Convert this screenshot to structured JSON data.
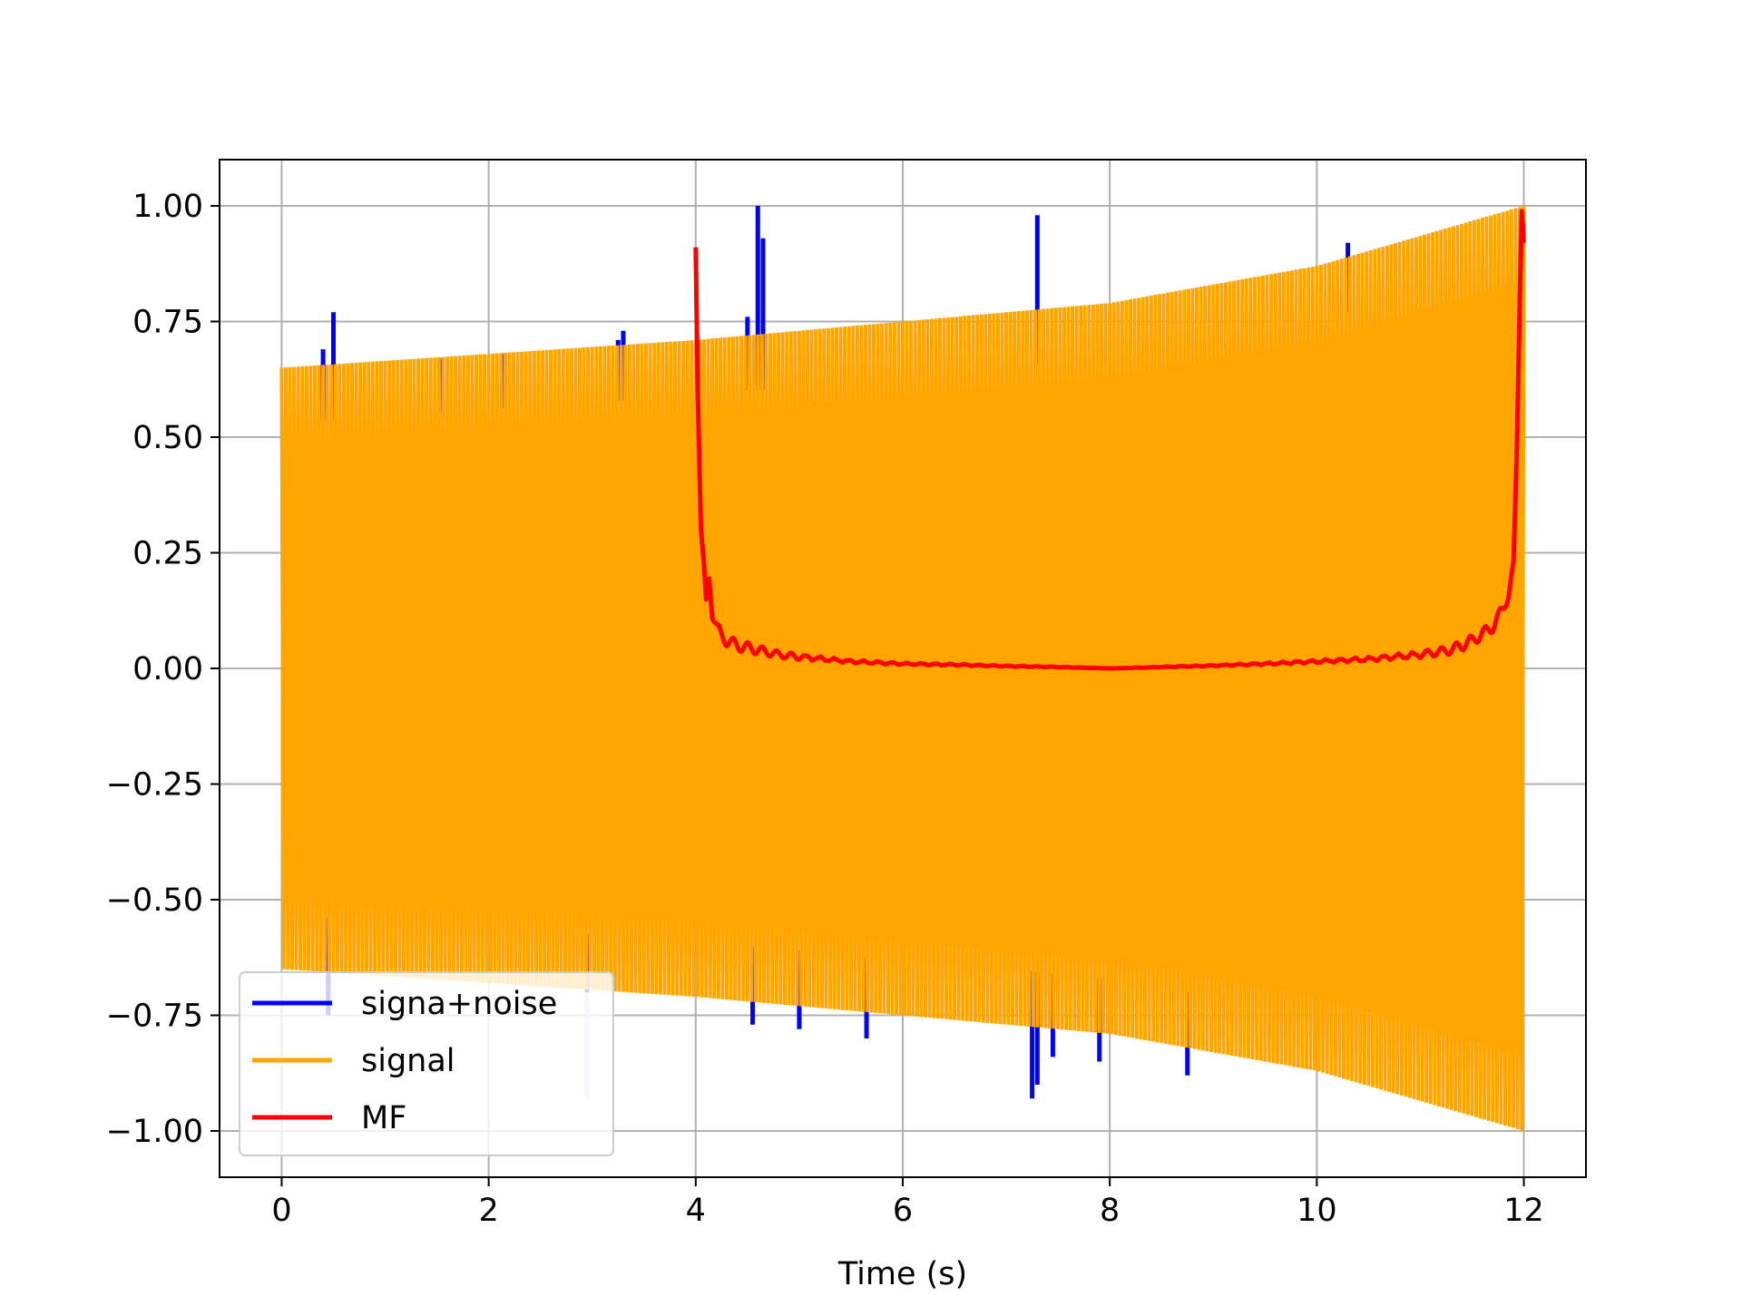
{
  "chart_data": {
    "type": "line",
    "title": "",
    "xlabel": "Time (s)",
    "ylabel": "",
    "xlim": [
      -0.6,
      12.6
    ],
    "ylim": [
      -1.1,
      1.1
    ],
    "xticks": [
      0,
      2,
      4,
      6,
      8,
      10,
      12
    ],
    "xtick_labels": [
      "0",
      "2",
      "4",
      "6",
      "8",
      "10",
      "12"
    ],
    "yticks": [
      1.0,
      0.75,
      0.5,
      0.25,
      0.0,
      -0.25,
      -0.5,
      -0.75,
      -1.0
    ],
    "ytick_labels": [
      "1.00",
      "0.75",
      "0.50",
      "0.25",
      "0.00",
      "−0.25",
      "−0.50",
      "−0.75",
      "−1.00"
    ],
    "grid": true,
    "legend_position": "lower-left",
    "series": [
      {
        "name": "signa+noise",
        "color": "#0000ff",
        "description_points": {
          "noise_spikes": [
            {
              "t": 0.4,
              "y": 0.69
            },
            {
              "t": 0.5,
              "y": 0.77
            },
            {
              "t": 1.55,
              "y": 0.67
            },
            {
              "t": 2.15,
              "y": 0.68
            },
            {
              "t": 3.25,
              "y": 0.71
            },
            {
              "t": 3.3,
              "y": 0.73
            },
            {
              "t": 4.5,
              "y": 0.76
            },
            {
              "t": 4.6,
              "y": 1.0
            },
            {
              "t": 4.65,
              "y": 0.93
            },
            {
              "t": 7.3,
              "y": 0.98
            },
            {
              "t": 10.3,
              "y": 0.92
            },
            {
              "t": 0.45,
              "y": -0.75
            },
            {
              "t": 2.95,
              "y": -0.93
            },
            {
              "t": 4.55,
              "y": -0.77
            },
            {
              "t": 5.0,
              "y": -0.78
            },
            {
              "t": 5.65,
              "y": -0.8
            },
            {
              "t": 7.25,
              "y": -0.93
            },
            {
              "t": 7.3,
              "y": -0.9
            },
            {
              "t": 7.45,
              "y": -0.84
            },
            {
              "t": 7.9,
              "y": -0.85
            },
            {
              "t": 8.75,
              "y": -0.88
            }
          ]
        }
      },
      {
        "name": "signal",
        "color": "#ffa500",
        "envelope": {
          "t": [
            0,
            2,
            4,
            6,
            8,
            10,
            12
          ],
          "upper": [
            0.65,
            0.68,
            0.71,
            0.75,
            0.79,
            0.87,
            1.0
          ],
          "lower": [
            -0.65,
            -0.68,
            -0.71,
            -0.75,
            -0.79,
            -0.87,
            -1.0
          ]
        }
      },
      {
        "name": "MF",
        "color": "#ff0000",
        "x": [
          4.0,
          4.02,
          4.05,
          4.08,
          4.1,
          4.13,
          4.16,
          4.2,
          4.25,
          4.3,
          4.4,
          4.5,
          4.6,
          4.8,
          5.0,
          5.5,
          6.0,
          6.5,
          7.0,
          7.5,
          8.0,
          8.5,
          9.0,
          9.5,
          10.0,
          10.5,
          11.0,
          11.3,
          11.5,
          11.7,
          11.8,
          11.85,
          11.9,
          11.93,
          11.96,
          11.98,
          12.0
        ],
        "y": [
          0.92,
          0.6,
          0.3,
          0.21,
          0.14,
          0.2,
          0.12,
          0.09,
          0.07,
          0.06,
          0.05,
          0.045,
          0.04,
          0.03,
          0.025,
          0.015,
          0.01,
          0.008,
          0.005,
          0.003,
          0.0,
          0.003,
          0.006,
          0.01,
          0.015,
          0.02,
          0.03,
          0.04,
          0.06,
          0.09,
          0.13,
          0.16,
          0.22,
          0.45,
          0.8,
          1.0,
          0.92
        ]
      }
    ]
  }
}
